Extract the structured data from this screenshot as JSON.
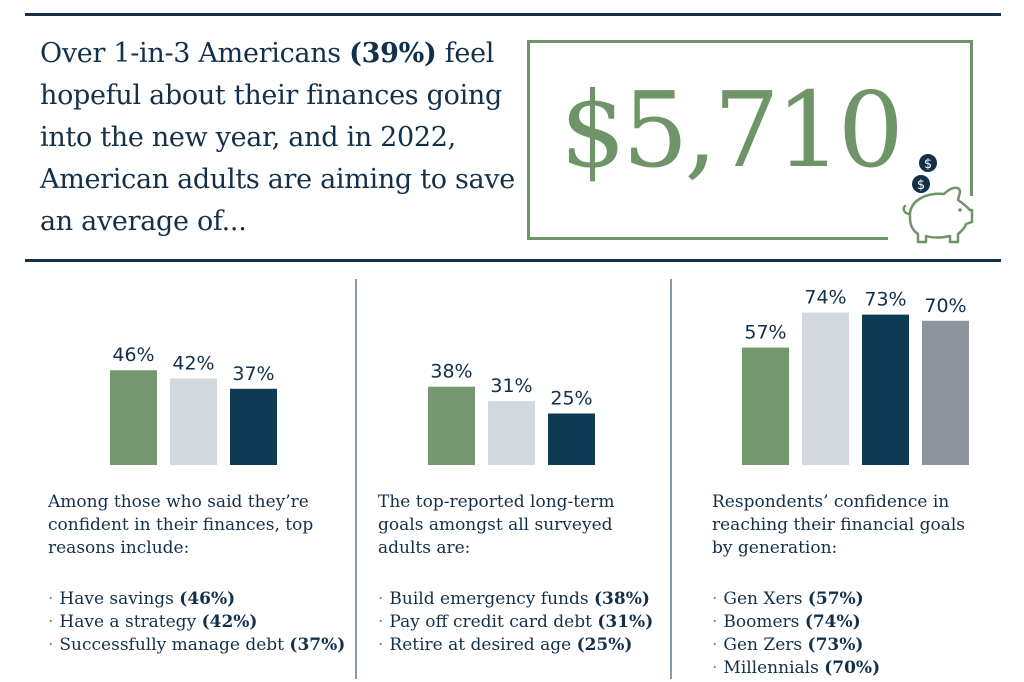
{
  "headline": {
    "part1": "Over 1-in-3 Americans ",
    "highlight": "(39%)",
    "part2": " feel hopeful about their finances going into the new year, and in 2022, American adults are aiming to save an average of..."
  },
  "amount": "$5,710",
  "colors": {
    "navy": "#13304a",
    "green": "#6f9468",
    "light_gray": "#d2d8de",
    "dark_navy": "#0f3a53",
    "gray": "#8c939a"
  },
  "icons": [
    "piggy-bank-icon",
    "dollar-coin-icon"
  ],
  "chart_data": [
    {
      "type": "bar",
      "categories": [
        "Have savings",
        "Have a strategy",
        "Successfully manage debt"
      ],
      "values": [
        46,
        42,
        37
      ],
      "labels": [
        "46%",
        "42%",
        "37%"
      ],
      "colors": [
        "#749770",
        "#d2d8de",
        "#0f3a53"
      ],
      "ylim": [
        0,
        80
      ]
    },
    {
      "type": "bar",
      "categories": [
        "Build emergency funds",
        "Pay off credit card debt",
        "Retire at desired age"
      ],
      "values": [
        38,
        31,
        25
      ],
      "labels": [
        "38%",
        "31%",
        "25%"
      ],
      "colors": [
        "#749770",
        "#d2d8de",
        "#0f3a53"
      ],
      "ylim": [
        0,
        80
      ]
    },
    {
      "type": "bar",
      "categories": [
        "Gen Xers",
        "Boomers",
        "Gen Zers",
        "Millennials"
      ],
      "values": [
        57,
        74,
        73,
        70
      ],
      "labels": [
        "57%",
        "74%",
        "73%",
        "70%"
      ],
      "colors": [
        "#749770",
        "#d2d8de",
        "#0f3a53",
        "#8c939a"
      ],
      "ylim": [
        0,
        80
      ]
    }
  ],
  "panels": [
    {
      "caption": "Among those who said they’re confident in their finances, top reasons include:",
      "items": [
        {
          "text": "Have savings ",
          "pct": "(46%)"
        },
        {
          "text": "Have a strategy ",
          "pct": "(42%)"
        },
        {
          "text": "Successfully manage debt ",
          "pct": "(37%)"
        }
      ]
    },
    {
      "caption": "The top-reported long-term goals amongst all surveyed adults are:",
      "items": [
        {
          "text": "Build emergency funds ",
          "pct": "(38%)"
        },
        {
          "text": "Pay off credit card debt ",
          "pct": "(31%)"
        },
        {
          "text": "Retire at desired age ",
          "pct": "(25%)"
        }
      ]
    },
    {
      "caption": "Respondents’ confidence in reaching their financial goals by generation:",
      "items": [
        {
          "text": "Gen Xers ",
          "pct": "(57%)"
        },
        {
          "text": "Boomers ",
          "pct": "(74%)"
        },
        {
          "text": "Gen Zers ",
          "pct": "(73%)"
        },
        {
          "text": "Millennials ",
          "pct": "(70%)"
        }
      ]
    }
  ]
}
